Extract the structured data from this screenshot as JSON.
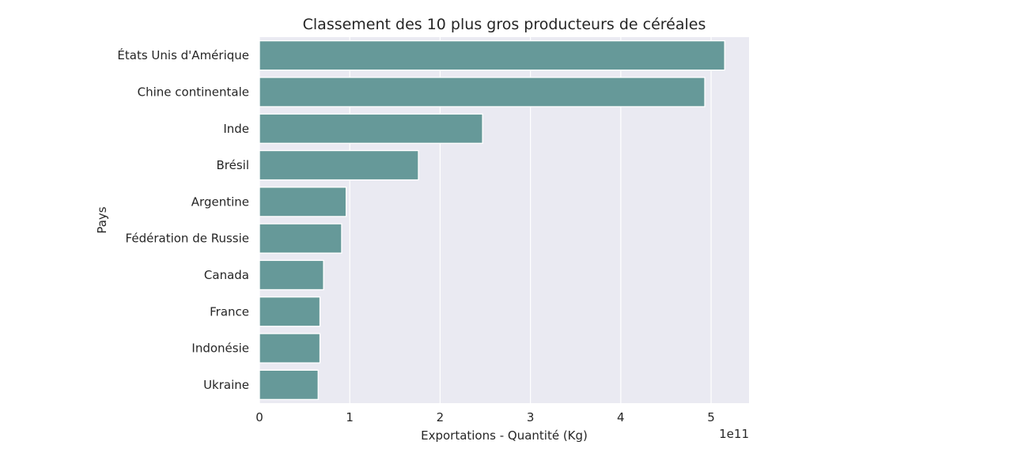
{
  "chart_data": {
    "type": "bar",
    "orientation": "horizontal",
    "title": "Classement des 10 plus gros producteurs de céréales",
    "xlabel": "Exportations - Quantité (Kg)",
    "ylabel": "Pays",
    "x_offset_label": "1e11",
    "categories": [
      "États Unis d'Amérique",
      "Chine continentale",
      "Inde",
      "Brésil",
      "Argentine",
      "Fédération de Russie",
      "Canada",
      "France",
      "Indonésie",
      "Ukraine"
    ],
    "values": [
      515000000000.0,
      493000000000.0,
      247000000000.0,
      176000000000.0,
      96000000000.0,
      91000000000.0,
      71000000000.0,
      67000000000.0,
      67000000000.0,
      65000000000.0
    ],
    "xlim": [
      0,
      542000000000.0
    ],
    "xticks": [
      0,
      100000000000.0,
      200000000000.0,
      300000000000.0,
      400000000000.0,
      500000000000.0
    ],
    "xtick_labels": [
      "0",
      "1",
      "2",
      "3",
      "4",
      "5"
    ],
    "grid": "vertical",
    "style": "seaborn-darkgrid",
    "colors": {
      "bar": "#669999",
      "bar_edge": "#ffffff",
      "plot_background": "#eaeaf2",
      "grid": "#ffffff",
      "text": "#262626"
    }
  }
}
